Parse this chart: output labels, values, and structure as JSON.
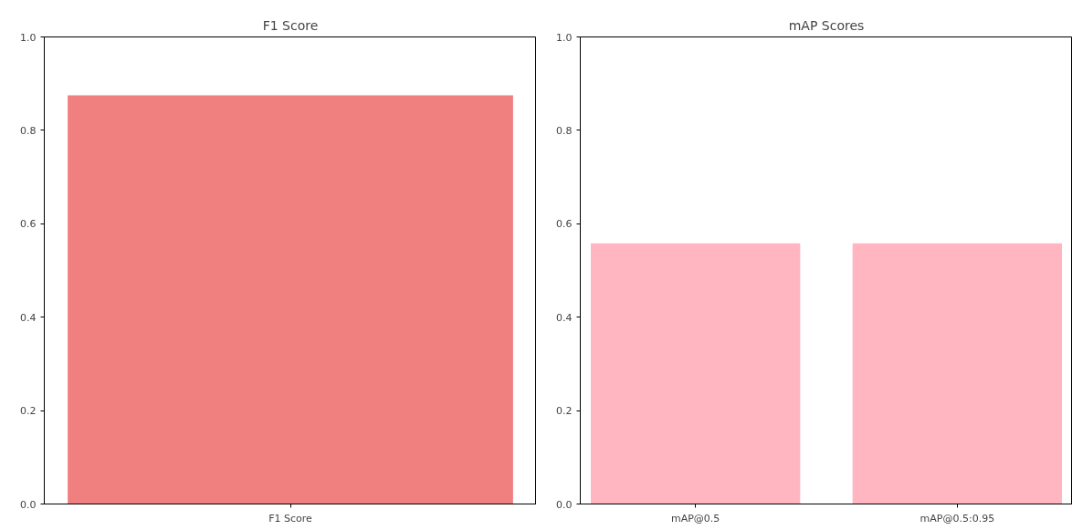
{
  "chart_data": [
    {
      "type": "bar",
      "title": "F1 Score",
      "categories": [
        "F1 Score"
      ],
      "values": [
        0.875
      ],
      "color": "#f08080",
      "ylim": [
        0,
        1
      ],
      "yticks": [
        {
          "value": 0,
          "label": "0.0"
        },
        {
          "value": 0.2,
          "label": "0.2"
        },
        {
          "value": 0.4,
          "label": "0.4"
        },
        {
          "value": 0.6,
          "label": "0.6"
        },
        {
          "value": 0.8,
          "label": "0.8"
        },
        {
          "value": 1,
          "label": "1.0"
        }
      ]
    },
    {
      "type": "bar",
      "title": "mAP Scores",
      "categories": [
        "mAP@0.5",
        "mAP@0.5:0.95"
      ],
      "values": [
        0.558,
        0.558
      ],
      "color": "#ffb6c1",
      "ylim": [
        0,
        1
      ],
      "yticks": [
        {
          "value": 0,
          "label": "0.0"
        },
        {
          "value": 0.2,
          "label": "0.2"
        },
        {
          "value": 0.4,
          "label": "0.4"
        },
        {
          "value": 0.6,
          "label": "0.6"
        },
        {
          "value": 0.8,
          "label": "0.8"
        },
        {
          "value": 1,
          "label": "1.0"
        }
      ]
    }
  ]
}
